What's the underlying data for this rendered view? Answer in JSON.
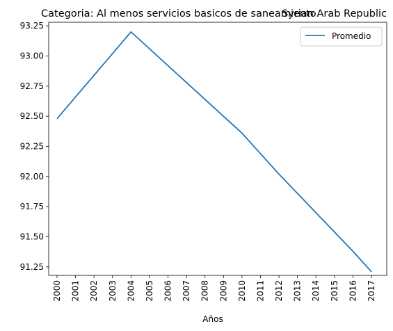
{
  "chart_data": {
    "type": "line",
    "title_left": "Categoria: Al menos servicios basicos de saneamiento",
    "title_right": "Syrian Arab Republic",
    "xlabel": "Años",
    "ylabel": "",
    "x": [
      "2000",
      "2001",
      "2002",
      "2003",
      "2004",
      "2005",
      "2006",
      "2007",
      "2008",
      "2009",
      "2010",
      "2011",
      "2012",
      "2013",
      "2014",
      "2015",
      "2016",
      "2017"
    ],
    "y_ticks": [
      "91.25",
      "91.50",
      "91.75",
      "92.00",
      "92.25",
      "92.50",
      "92.75",
      "93.00",
      "93.25"
    ],
    "ylim": [
      91.18,
      93.28
    ],
    "series": [
      {
        "name": "Promedio",
        "color": "#1f77b4",
        "values": [
          92.48,
          92.66,
          92.84,
          93.02,
          93.2,
          93.06,
          92.92,
          92.78,
          92.64,
          92.5,
          92.36,
          92.19,
          92.02,
          91.86,
          91.7,
          91.54,
          91.38,
          91.21
        ]
      }
    ],
    "legend": "top-right",
    "grid": false
  }
}
